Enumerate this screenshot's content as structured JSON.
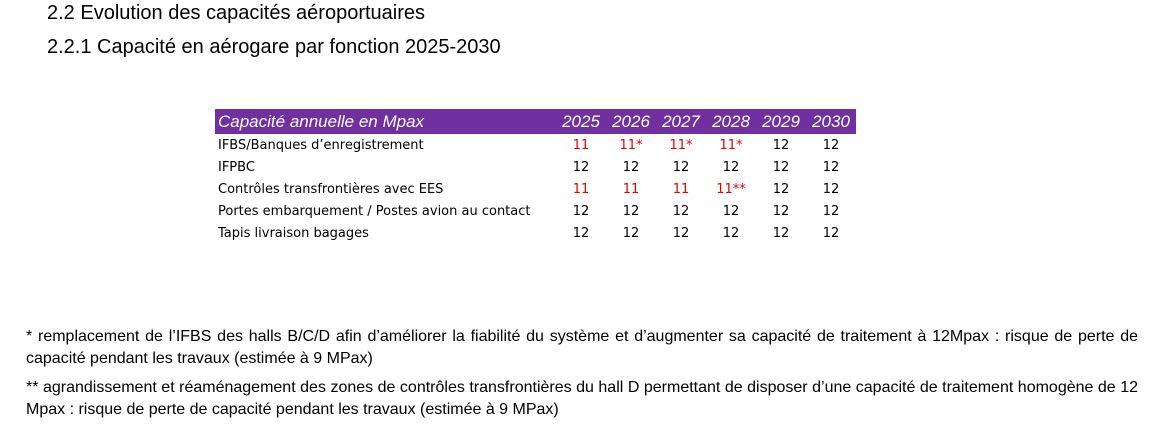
{
  "section_title": "2.2 Evolution des capacités aéroportuaires",
  "subsection_title": "2.2.1 Capacité en aérogare par fonction 2025-2030",
  "table": {
    "header_label": "Capacité annuelle en Mpax",
    "years": [
      "2025",
      "2026",
      "2027",
      "2028",
      "2029",
      "2030"
    ],
    "highlight_color": "#e60000",
    "header_color": "#7030a0",
    "rows": [
      {
        "label": "IFBS/Banques d’enregistrement",
        "values": [
          "11",
          "11*",
          "11*",
          "11*",
          "12",
          "12"
        ],
        "highlight": [
          true,
          true,
          true,
          true,
          false,
          false
        ]
      },
      {
        "label": "IFPBC",
        "values": [
          "12",
          "12",
          "12",
          "12",
          "12",
          "12"
        ],
        "highlight": [
          false,
          false,
          false,
          false,
          false,
          false
        ]
      },
      {
        "label": "Contrôles transfrontières avec EES",
        "values": [
          "11",
          "11",
          "11",
          "11**",
          "12",
          "12"
        ],
        "highlight": [
          true,
          true,
          true,
          true,
          false,
          false
        ]
      },
      {
        "label": "Portes embarquement / Postes avion au contact",
        "values": [
          "12",
          "12",
          "12",
          "12",
          "12",
          "12"
        ],
        "highlight": [
          false,
          false,
          false,
          false,
          false,
          false
        ]
      },
      {
        "label": "Tapis livraison bagages",
        "values": [
          "12",
          "12",
          "12",
          "12",
          "12",
          "12"
        ],
        "highlight": [
          false,
          false,
          false,
          false,
          false,
          false
        ]
      }
    ]
  },
  "footnotes": [
    "* remplacement de l’IFBS des halls B/C/D afin d’améliorer la fiabilité du système et d’augmenter sa capacité de traitement à 12Mpax : risque de perte de capacité pendant les travaux (estimée à 9 MPax)",
    "** agrandissement et réaménagement des zones de contrôles transfrontières du hall D permettant de disposer d’une capacité de traitement homogène de 12 Mpax : risque de perte de capacité pendant les travaux (estimée à 9 MPax)"
  ]
}
